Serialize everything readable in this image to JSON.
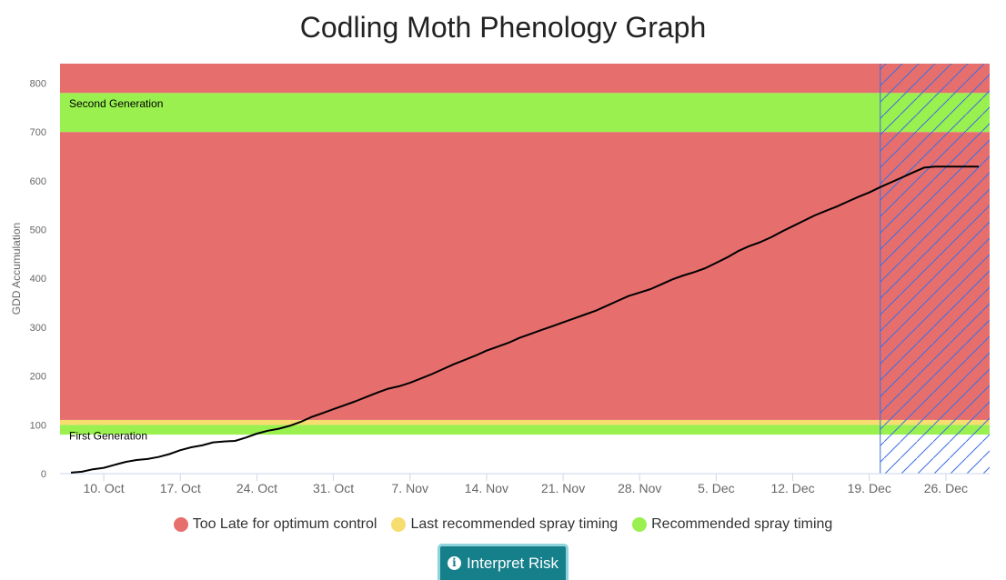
{
  "chart_data": {
    "type": "line",
    "title": "Codling Moth Phenology Graph",
    "ylabel": "GDD Accumulation",
    "xlabel": "",
    "ylim": [
      0,
      840
    ],
    "y_ticks": [
      0,
      100,
      200,
      300,
      400,
      500,
      600,
      700,
      800
    ],
    "x_range_days": [
      "2023-10-06",
      "2023-12-30"
    ],
    "x_ticks": [
      {
        "date": "2023-10-10",
        "label": "10. Oct"
      },
      {
        "date": "2023-10-17",
        "label": "17. Oct"
      },
      {
        "date": "2023-10-24",
        "label": "24. Oct"
      },
      {
        "date": "2023-10-31",
        "label": "31. Oct"
      },
      {
        "date": "2023-11-07",
        "label": "7. Nov"
      },
      {
        "date": "2023-11-14",
        "label": "14. Nov"
      },
      {
        "date": "2023-11-21",
        "label": "21. Nov"
      },
      {
        "date": "2023-11-28",
        "label": "28. Nov"
      },
      {
        "date": "2023-12-05",
        "label": "5. Dec"
      },
      {
        "date": "2023-12-12",
        "label": "12. Dec"
      },
      {
        "date": "2023-12-19",
        "label": "19. Dec"
      },
      {
        "date": "2023-12-26",
        "label": "26. Dec"
      }
    ],
    "bands": [
      {
        "from": 80,
        "to": 100,
        "color": "#99f04f",
        "label": "First Generation"
      },
      {
        "from": 100,
        "to": 110,
        "color": "#f7dc6f",
        "label": ""
      },
      {
        "from": 110,
        "to": 700,
        "color": "#e66f6d",
        "label": ""
      },
      {
        "from": 700,
        "to": 780,
        "color": "#99f04f",
        "label": "Second Generation"
      },
      {
        "from": 780,
        "to": 840,
        "color": "#e66f6d",
        "label": ""
      }
    ],
    "forecast_start": "2023-12-20",
    "series": [
      {
        "color": "#000000",
        "x": [
          "2023-10-07",
          "2023-10-08",
          "2023-10-09",
          "2023-10-10",
          "2023-10-11",
          "2023-10-12",
          "2023-10-13",
          "2023-10-14",
          "2023-10-15",
          "2023-10-16",
          "2023-10-17",
          "2023-10-18",
          "2023-10-19",
          "2023-10-20",
          "2023-10-21",
          "2023-10-22",
          "2023-10-23",
          "2023-10-24",
          "2023-10-25",
          "2023-10-26",
          "2023-10-27",
          "2023-10-28",
          "2023-10-29",
          "2023-10-30",
          "2023-10-31",
          "2023-11-01",
          "2023-11-02",
          "2023-11-03",
          "2023-11-04",
          "2023-11-05",
          "2023-11-06",
          "2023-11-07",
          "2023-11-08",
          "2023-11-09",
          "2023-11-10",
          "2023-11-11",
          "2023-11-12",
          "2023-11-13",
          "2023-11-14",
          "2023-11-15",
          "2023-11-16",
          "2023-11-17",
          "2023-11-18",
          "2023-11-19",
          "2023-11-20",
          "2023-11-21",
          "2023-11-22",
          "2023-11-23",
          "2023-11-24",
          "2023-11-25",
          "2023-11-26",
          "2023-11-27",
          "2023-11-28",
          "2023-11-29",
          "2023-11-30",
          "2023-12-01",
          "2023-12-02",
          "2023-12-03",
          "2023-12-04",
          "2023-12-05",
          "2023-12-06",
          "2023-12-07",
          "2023-12-08",
          "2023-12-09",
          "2023-12-10",
          "2023-12-11",
          "2023-12-12",
          "2023-12-13",
          "2023-12-14",
          "2023-12-15",
          "2023-12-16",
          "2023-12-17",
          "2023-12-18",
          "2023-12-19",
          "2023-12-20",
          "2023-12-21",
          "2023-12-22",
          "2023-12-23",
          "2023-12-24",
          "2023-12-25",
          "2023-12-26",
          "2023-12-27",
          "2023-12-28",
          "2023-12-29"
        ],
        "values": [
          2,
          4,
          9,
          12,
          18,
          24,
          28,
          30,
          34,
          40,
          48,
          54,
          58,
          64,
          66,
          67,
          74,
          82,
          88,
          92,
          98,
          106,
          116,
          124,
          132,
          140,
          148,
          157,
          166,
          174,
          179,
          186,
          195,
          204,
          214,
          224,
          233,
          242,
          252,
          260,
          268,
          278,
          286,
          294,
          302,
          310,
          318,
          326,
          334,
          344,
          354,
          364,
          371,
          378,
          388,
          398,
          406,
          413,
          421,
          432,
          443,
          456,
          466,
          474,
          484,
          496,
          507,
          518,
          529,
          538,
          547,
          557,
          567,
          576,
          587,
          597,
          607,
          617,
          627,
          629,
          629,
          629,
          629,
          629
        ]
      }
    ],
    "legend": [
      {
        "label": "Too Late for optimum control",
        "color": "#e66f6d"
      },
      {
        "label": "Last recommended spray timing",
        "color": "#f7dc6f"
      },
      {
        "label": "Recommended spray timing",
        "color": "#99f04f"
      }
    ]
  },
  "button": {
    "label": "Interpret Risk",
    "icon": "info-icon"
  }
}
